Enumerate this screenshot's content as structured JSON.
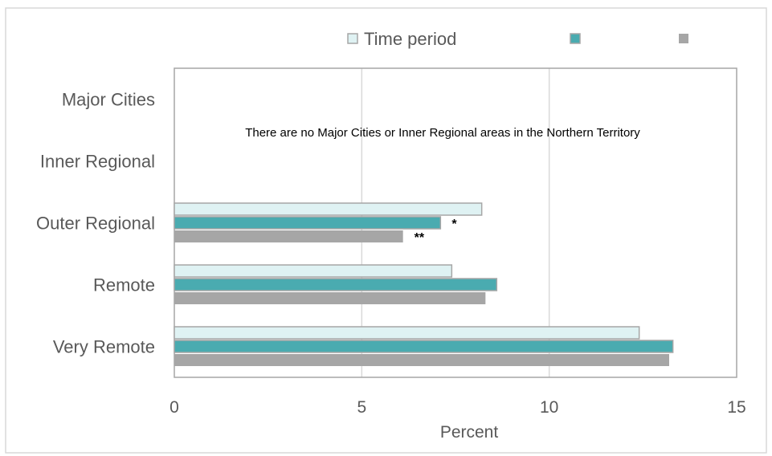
{
  "chart_data": {
    "type": "bar",
    "orientation": "horizontal",
    "categories": [
      "Major Cities",
      "Inner Regional",
      "Outer Regional",
      "Remote",
      "Very Remote"
    ],
    "series": [
      {
        "name": "Time period",
        "color": "#dff2f3",
        "values": [
          null,
          null,
          8.2,
          7.4,
          12.4
        ]
      },
      {
        "name": "",
        "color": "#4aabb0",
        "values": [
          null,
          null,
          7.1,
          8.6,
          13.3
        ]
      },
      {
        "name": "",
        "color": "#a6a6a6",
        "values": [
          null,
          null,
          6.1,
          8.3,
          13.2
        ]
      }
    ],
    "annotations": [
      {
        "category": "Outer Regional",
        "series": 1,
        "text": "*"
      },
      {
        "category": "Outer Regional",
        "series": 2,
        "text": "**"
      }
    ],
    "note": "There are no Major Cities or Inner Regional areas in the Northern Territory",
    "xlabel": "Percent",
    "ylabel": "",
    "xlim": [
      0,
      15
    ],
    "xticks": [
      0,
      5,
      10,
      15
    ],
    "grid": true,
    "legend_position": "top"
  }
}
